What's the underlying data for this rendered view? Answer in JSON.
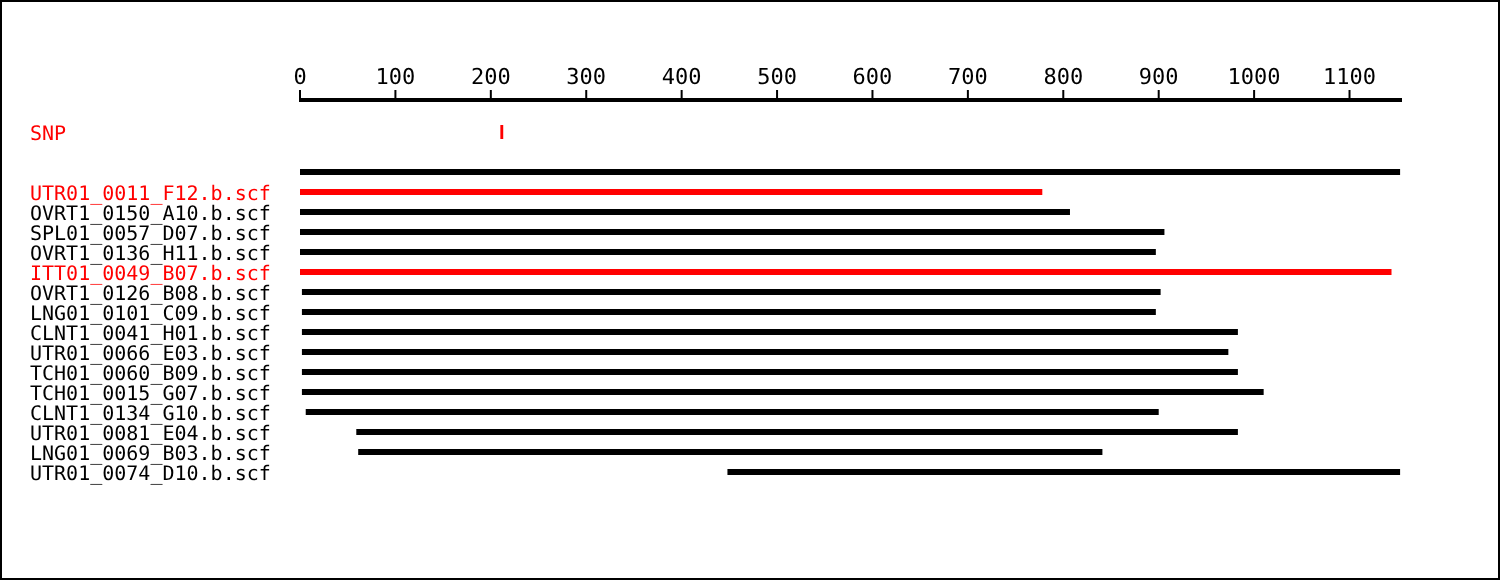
{
  "chart_data": {
    "type": "bar",
    "orientation": "horizontal",
    "categories": [
      "SNP",
      null,
      null,
      "UTR01_0011_F12.b.scf",
      "OVRT1_0150_A10.b.scf",
      "SPL01_0057_D07.b.scf",
      "OVRT1_0136_H11.b.scf",
      "ITT01_0049_B07.b.scf",
      "OVRT1_0126_B08.b.scf",
      "LNG01_0101_C09.b.scf",
      "CLNT1_0041_H01.b.scf",
      "UTR01_0066_E03.b.scf",
      "TCH01_0060_B09.b.scf",
      "TCH01_0015_G07.b.scf",
      "CLNT1_0134_G10.b.scf",
      "UTR01_0081_E04.b.scf",
      "LNG01_0069_B03.b.scf",
      "UTR01_0074_D10.b.scf"
    ],
    "base": [
      210,
      null,
      0,
      0,
      0,
      0,
      0,
      0,
      2,
      2,
      2,
      2,
      2,
      2,
      6,
      59,
      61,
      448
    ],
    "values": [
      3,
      null,
      1153,
      778,
      807,
      906,
      897,
      1144,
      900,
      895,
      981,
      971,
      981,
      1008,
      894,
      924,
      780,
      705
    ],
    "colors": [
      "#ff0000",
      null,
      "#000000",
      "#ff0000",
      "#000000",
      "#000000",
      "#000000",
      "#ff0000",
      "#000000",
      "#000000",
      "#000000",
      "#000000",
      "#000000",
      "#000000",
      "#000000",
      "#000000",
      "#000000",
      "#000000"
    ],
    "xlim": [
      0,
      1155
    ],
    "xticks": [
      0,
      100,
      200,
      300,
      400,
      500,
      600,
      700,
      800,
      900,
      1000,
      1100
    ],
    "grid": false
  }
}
